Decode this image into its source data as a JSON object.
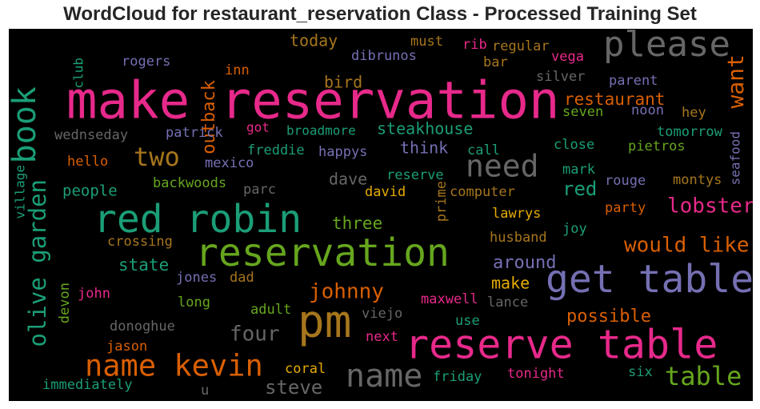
{
  "title": "WordCloud for restaurant_reservation Class - Processed Training Set",
  "chart_data": {
    "type": "wordcloud",
    "background": "#000000",
    "palette": {
      "pink": "#e7298a",
      "green": "#1b9e77",
      "orange": "#d95f02",
      "purple": "#7570b3",
      "lime": "#66a61e",
      "gold": "#e6ab02",
      "brown": "#a6761d",
      "gray": "#666666"
    },
    "words": [
      {
        "text": "make reservation",
        "color": "pink"
      },
      {
        "text": "please",
        "color": "gray"
      },
      {
        "text": "book",
        "color": "green"
      },
      {
        "text": "outback",
        "color": "orange"
      },
      {
        "text": "club",
        "color": "green"
      },
      {
        "text": "inn",
        "color": "orange"
      },
      {
        "text": "rogers",
        "color": "purple"
      },
      {
        "text": "today",
        "color": "brown"
      },
      {
        "text": "must",
        "color": "brown"
      },
      {
        "text": "dibrunos",
        "color": "purple"
      },
      {
        "text": "rib",
        "color": "pink"
      },
      {
        "text": "regular",
        "color": "brown"
      },
      {
        "text": "bar",
        "color": "brown"
      },
      {
        "text": "vega",
        "color": "pink"
      },
      {
        "text": "silver",
        "color": "gray"
      },
      {
        "text": "parent",
        "color": "purple"
      },
      {
        "text": "want",
        "color": "orange"
      },
      {
        "text": "bird",
        "color": "brown"
      },
      {
        "text": "restaurant",
        "color": "orange"
      },
      {
        "text": "seven",
        "color": "lime"
      },
      {
        "text": "noon",
        "color": "purple"
      },
      {
        "text": "hey",
        "color": "brown"
      },
      {
        "text": "tomorrow",
        "color": "green"
      },
      {
        "text": "seafood",
        "color": "purple"
      },
      {
        "text": "wednseday",
        "color": "gray"
      },
      {
        "text": "patrick",
        "color": "purple"
      },
      {
        "text": "got",
        "color": "pink"
      },
      {
        "text": "broadmore",
        "color": "green"
      },
      {
        "text": "steakhouse",
        "color": "green"
      },
      {
        "text": "close",
        "color": "green"
      },
      {
        "text": "pietros",
        "color": "lime"
      },
      {
        "text": "village",
        "color": "green"
      },
      {
        "text": "two",
        "color": "brown"
      },
      {
        "text": "freddie",
        "color": "green"
      },
      {
        "text": "happys",
        "color": "purple"
      },
      {
        "text": "think",
        "color": "purple"
      },
      {
        "text": "call",
        "color": "green"
      },
      {
        "text": "need",
        "color": "gray"
      },
      {
        "text": "hello",
        "color": "orange"
      },
      {
        "text": "mexico",
        "color": "purple"
      },
      {
        "text": "mark",
        "color": "green"
      },
      {
        "text": "olive garden",
        "color": "green"
      },
      {
        "text": "backwoods",
        "color": "lime"
      },
      {
        "text": "dave",
        "color": "gray"
      },
      {
        "text": "reserve",
        "color": "green"
      },
      {
        "text": "prime",
        "color": "brown"
      },
      {
        "text": "rouge",
        "color": "purple"
      },
      {
        "text": "montys",
        "color": "brown"
      },
      {
        "text": "red",
        "color": "green"
      },
      {
        "text": "people",
        "color": "green"
      },
      {
        "text": "parc",
        "color": "gray"
      },
      {
        "text": "david",
        "color": "gold"
      },
      {
        "text": "computer",
        "color": "brown"
      },
      {
        "text": "red robin",
        "color": "green"
      },
      {
        "text": "lobster",
        "color": "pink"
      },
      {
        "text": "party",
        "color": "orange"
      },
      {
        "text": "three",
        "color": "lime"
      },
      {
        "text": "lawrys",
        "color": "gold"
      },
      {
        "text": "joy",
        "color": "green"
      },
      {
        "text": "crossing",
        "color": "brown"
      },
      {
        "text": "husband",
        "color": "brown"
      },
      {
        "text": "would like",
        "color": "orange"
      },
      {
        "text": "reservation",
        "color": "lime"
      },
      {
        "text": "state",
        "color": "green"
      },
      {
        "text": "around",
        "color": "purple"
      },
      {
        "text": "get table",
        "color": "purple"
      },
      {
        "text": "jones",
        "color": "purple"
      },
      {
        "text": "dad",
        "color": "brown"
      },
      {
        "text": "devon",
        "color": "lime"
      },
      {
        "text": "make",
        "color": "gold"
      },
      {
        "text": "john",
        "color": "pink"
      },
      {
        "text": "johnny",
        "color": "orange"
      },
      {
        "text": "maxwell",
        "color": "pink"
      },
      {
        "text": "lance",
        "color": "gray"
      },
      {
        "text": "long",
        "color": "lime"
      },
      {
        "text": "adult",
        "color": "lime"
      },
      {
        "text": "viejo",
        "color": "gray"
      },
      {
        "text": "pm",
        "color": "brown"
      },
      {
        "text": "possible",
        "color": "orange"
      },
      {
        "text": "use",
        "color": "green"
      },
      {
        "text": "donoghue",
        "color": "gray"
      },
      {
        "text": "four",
        "color": "gray"
      },
      {
        "text": "next",
        "color": "pink"
      },
      {
        "text": "reserve table",
        "color": "pink"
      },
      {
        "text": "jason",
        "color": "orange"
      },
      {
        "text": "name kevin",
        "color": "orange"
      },
      {
        "text": "coral",
        "color": "gold"
      },
      {
        "text": "name",
        "color": "gray"
      },
      {
        "text": "friday",
        "color": "green"
      },
      {
        "text": "tonight",
        "color": "pink"
      },
      {
        "text": "six",
        "color": "green"
      },
      {
        "text": "table",
        "color": "lime"
      },
      {
        "text": "immediately",
        "color": "green"
      },
      {
        "text": "u",
        "color": "gray"
      },
      {
        "text": "steve",
        "color": "gray"
      }
    ]
  }
}
